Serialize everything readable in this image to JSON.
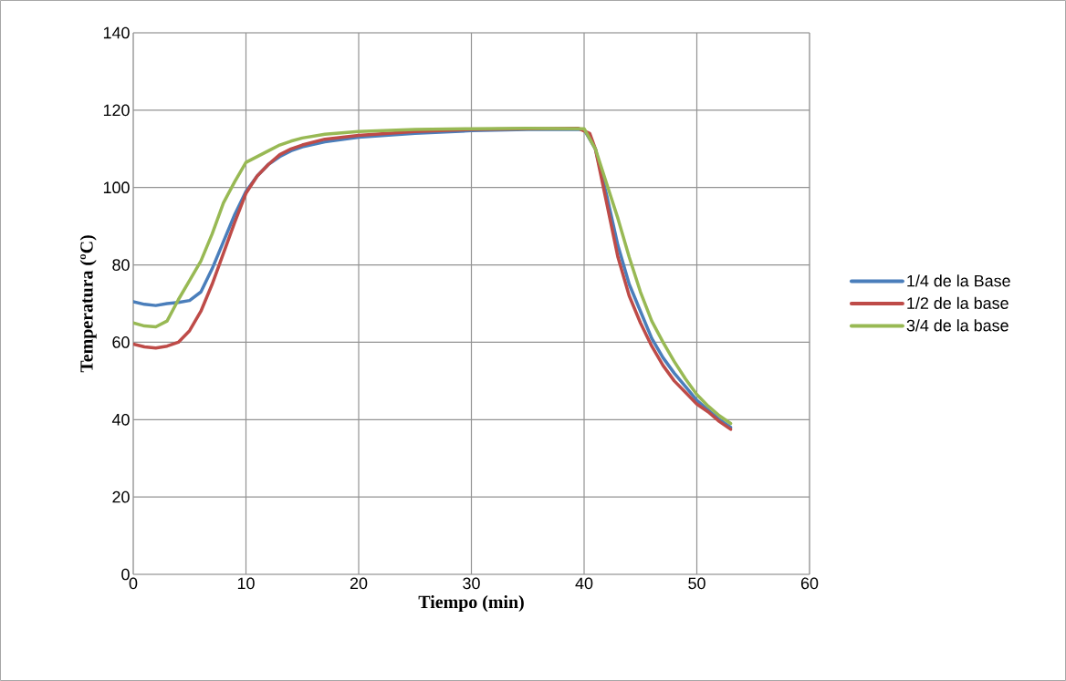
{
  "chart_data": {
    "type": "line",
    "xlabel": "Tiempo (min)",
    "ylabel": "Temperatura (ºC)",
    "xlim": [
      0,
      60
    ],
    "xticks": [
      0,
      10,
      20,
      30,
      40,
      50,
      60
    ],
    "ylim": [
      0,
      140
    ],
    "yticks": [
      0,
      20,
      40,
      60,
      80,
      100,
      120,
      140
    ],
    "grid": true,
    "legend": "right",
    "line_style": "solid",
    "marker": "none",
    "series": [
      {
        "name": "1/4 de la Base",
        "color": "#4a7ebb",
        "x": [
          0,
          1,
          2,
          3,
          4,
          5,
          6,
          7,
          8,
          9,
          10,
          11,
          12,
          13,
          14,
          15,
          17,
          20,
          25,
          30,
          35,
          40,
          41,
          42,
          43,
          44,
          45,
          46,
          47,
          48,
          49,
          50,
          51,
          52,
          53
        ],
        "values": [
          70.5,
          69.8,
          69.5,
          70,
          70.3,
          70.8,
          73,
          79,
          86,
          93,
          99,
          103,
          106,
          108,
          109.5,
          110.5,
          111.8,
          113,
          114,
          114.7,
          115,
          115,
          110,
          98,
          85,
          75,
          68,
          61,
          56,
          52,
          48.5,
          45,
          42.5,
          40,
          38
        ]
      },
      {
        "name": "1/2 de la base",
        "color": "#be4b48",
        "x": [
          0,
          1,
          2,
          3,
          4,
          5,
          6,
          7,
          8,
          9,
          10,
          11,
          12,
          13,
          14,
          15,
          17,
          20,
          25,
          30,
          35,
          39.5,
          40.5,
          41,
          42,
          43,
          44,
          45,
          46,
          47,
          48,
          49,
          50,
          51,
          52,
          53
        ],
        "values": [
          59.5,
          58.8,
          58.5,
          59,
          60,
          63,
          68,
          75,
          83,
          91,
          98.5,
          103,
          106,
          108.5,
          110,
          111,
          112.5,
          113.5,
          114.5,
          115,
          115.2,
          115.3,
          114,
          110,
          96,
          82,
          72,
          65,
          59,
          54,
          50,
          47,
          44,
          42,
          39.5,
          37.5
        ]
      },
      {
        "name": "3/4 de la base",
        "color": "#98b954",
        "x": [
          0,
          1,
          2,
          3,
          4,
          5,
          6,
          7,
          8,
          9,
          10,
          11,
          12,
          13,
          14,
          15,
          17,
          20,
          25,
          30,
          35,
          40,
          41,
          42,
          43,
          44,
          45,
          46,
          47,
          48,
          49,
          50,
          51,
          52,
          53
        ],
        "values": [
          65,
          64.2,
          64,
          65.5,
          71,
          76,
          81,
          88,
          96,
          101.5,
          106.5,
          108,
          109.5,
          111,
          112,
          112.8,
          113.8,
          114.5,
          115,
          115.2,
          115.3,
          115.2,
          110,
          101,
          92,
          82,
          73,
          65.5,
          60,
          55,
          50.5,
          46.5,
          43.5,
          41,
          39
        ]
      }
    ]
  }
}
